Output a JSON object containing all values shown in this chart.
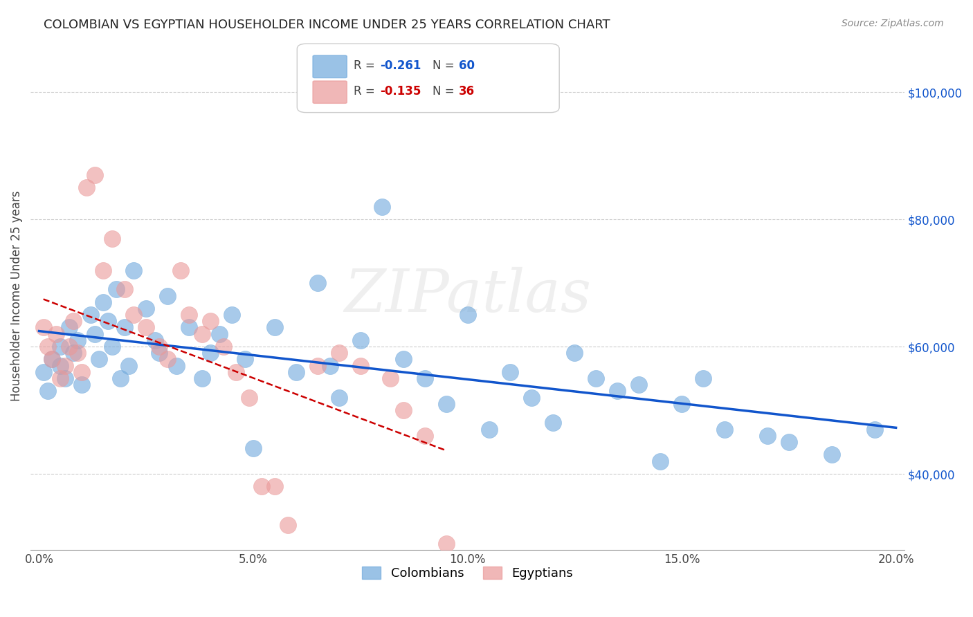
{
  "title": "COLOMBIAN VS EGYPTIAN HOUSEHOLDER INCOME UNDER 25 YEARS CORRELATION CHART",
  "source": "Source: ZipAtlas.com",
  "ylabel": "Householder Income Under 25 years",
  "xlabel_ticks": [
    "0.0%",
    "5.0%",
    "10.0%",
    "15.0%",
    "20.0%"
  ],
  "xlabel_vals": [
    0.0,
    0.05,
    0.1,
    0.15,
    0.2
  ],
  "ylabel_ticks": [
    "$40,000",
    "$60,000",
    "$80,000",
    "$100,000"
  ],
  "ylabel_vals": [
    40000,
    60000,
    80000,
    100000
  ],
  "ylim": [
    28000,
    108000
  ],
  "xlim": [
    -0.002,
    0.202
  ],
  "colombian_color": "#6fa8dc",
  "egyptian_color": "#ea9999",
  "colombian_line_color": "#1155cc",
  "egyptian_line_color": "#cc0000",
  "legend_R_colombian": "R = -0.261",
  "legend_N_colombian": "N = 60",
  "legend_R_egyptian": "R = -0.135",
  "legend_N_egyptian": "N = 36",
  "watermark": "ZIPatlas",
  "colombians_x": [
    0.001,
    0.002,
    0.003,
    0.005,
    0.005,
    0.006,
    0.007,
    0.008,
    0.009,
    0.01,
    0.012,
    0.013,
    0.014,
    0.015,
    0.016,
    0.017,
    0.018,
    0.019,
    0.02,
    0.021,
    0.022,
    0.025,
    0.027,
    0.028,
    0.03,
    0.032,
    0.035,
    0.038,
    0.04,
    0.042,
    0.045,
    0.048,
    0.05,
    0.055,
    0.06,
    0.065,
    0.068,
    0.07,
    0.075,
    0.08,
    0.085,
    0.09,
    0.095,
    0.1,
    0.105,
    0.11,
    0.115,
    0.12,
    0.125,
    0.13,
    0.135,
    0.14,
    0.145,
    0.15,
    0.155,
    0.16,
    0.17,
    0.175,
    0.185,
    0.195
  ],
  "colombians_y": [
    56000,
    53000,
    58000,
    57000,
    60000,
    55000,
    63000,
    59000,
    61000,
    54000,
    65000,
    62000,
    58000,
    67000,
    64000,
    60000,
    69000,
    55000,
    63000,
    57000,
    72000,
    66000,
    61000,
    59000,
    68000,
    57000,
    63000,
    55000,
    59000,
    62000,
    65000,
    58000,
    44000,
    63000,
    56000,
    70000,
    57000,
    52000,
    61000,
    82000,
    58000,
    55000,
    51000,
    65000,
    47000,
    56000,
    52000,
    48000,
    59000,
    55000,
    53000,
    54000,
    42000,
    51000,
    55000,
    47000,
    46000,
    45000,
    43000,
    47000
  ],
  "egyptians_x": [
    0.001,
    0.002,
    0.003,
    0.004,
    0.005,
    0.006,
    0.007,
    0.008,
    0.009,
    0.01,
    0.011,
    0.013,
    0.015,
    0.017,
    0.02,
    0.022,
    0.025,
    0.028,
    0.03,
    0.033,
    0.035,
    0.038,
    0.04,
    0.043,
    0.046,
    0.049,
    0.052,
    0.055,
    0.058,
    0.065,
    0.07,
    0.075,
    0.082,
    0.085,
    0.09,
    0.095
  ],
  "egyptians_y": [
    63000,
    60000,
    58000,
    62000,
    55000,
    57000,
    60000,
    64000,
    59000,
    56000,
    85000,
    87000,
    72000,
    77000,
    69000,
    65000,
    63000,
    60000,
    58000,
    72000,
    65000,
    62000,
    64000,
    60000,
    56000,
    52000,
    38000,
    38000,
    32000,
    57000,
    59000,
    57000,
    55000,
    50000,
    46000,
    29000
  ]
}
